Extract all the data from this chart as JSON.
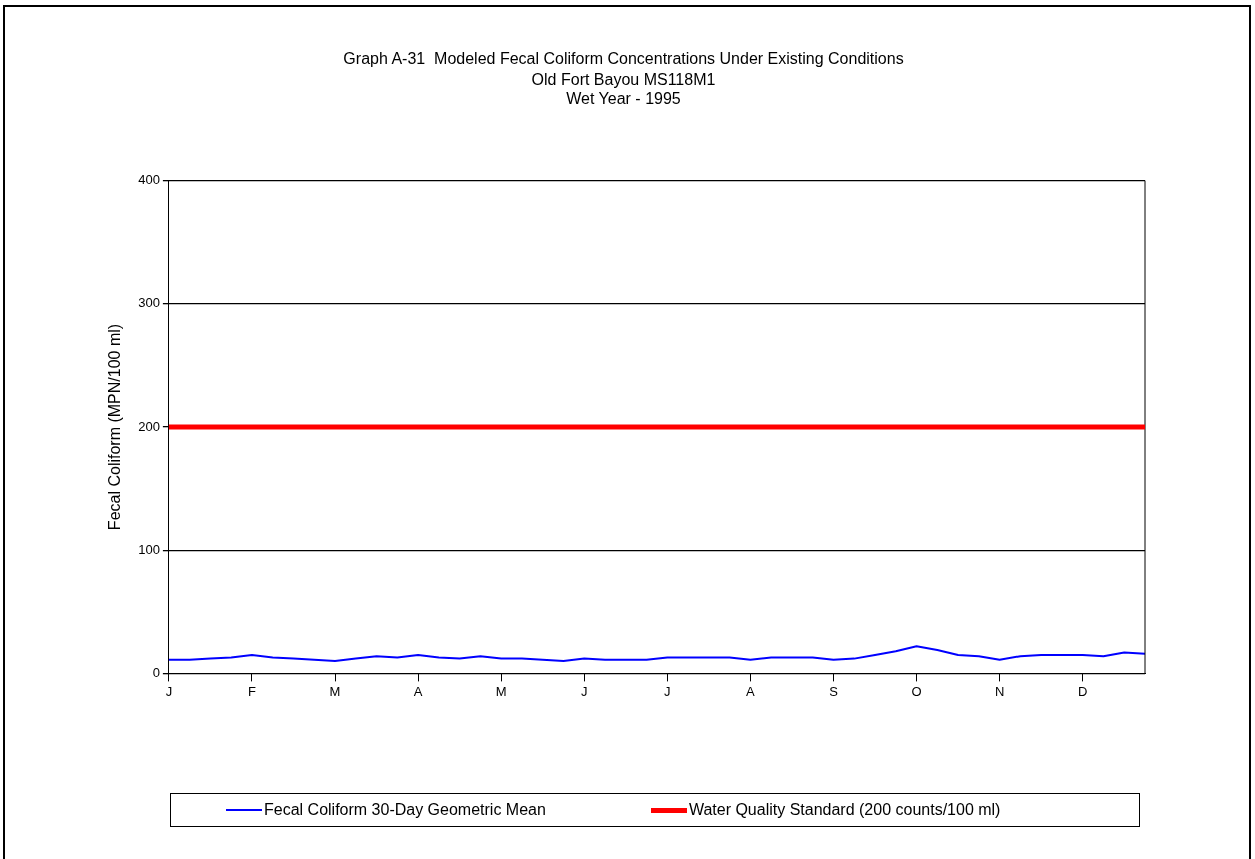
{
  "chart_data": {
    "type": "line",
    "title": "Graph A-31  Modeled Fecal Coliform Concentrations Under Existing Conditions",
    "subtitle": "Old Fort Bayou MS118M1\nWet Year - 1995",
    "ylabel": "Fecal Coliform (MPN/100 ml)",
    "categories": [
      "J",
      null,
      null,
      null,
      "F",
      null,
      null,
      null,
      "M",
      null,
      null,
      null,
      "A",
      null,
      null,
      null,
      "M",
      null,
      null,
      null,
      "J",
      null,
      null,
      null,
      "J",
      null,
      null,
      null,
      "A",
      null,
      null,
      null,
      "S",
      null,
      null,
      null,
      "O",
      null,
      null,
      null,
      "N",
      null,
      null,
      null,
      "D",
      null,
      null,
      null
    ],
    "ylim": [
      0,
      400
    ],
    "yticks": [
      0,
      100,
      200,
      300,
      400
    ],
    "grid": "y",
    "legend": "bottom",
    "marker": "none",
    "line_style": "solid",
    "series": [
      {
        "name": "Fecal Coliform 30-Day Geometric Mean",
        "color": "#0000ff",
        "values": [
          11,
          11,
          12,
          13,
          15,
          13,
          12,
          11,
          10,
          12,
          14,
          13,
          15,
          13,
          12,
          14,
          12,
          12,
          11,
          10,
          12,
          11,
          11,
          11,
          13,
          13,
          13,
          13,
          11,
          13,
          13,
          13,
          11,
          12,
          15,
          18,
          22,
          19,
          15,
          14,
          11,
          14,
          15,
          15,
          15,
          14,
          17,
          16
        ]
      }
    ],
    "ref_lines": [
      {
        "axis": "y",
        "value": 200,
        "label": "Water Quality Standard (200 counts/100 ml)",
        "color": "#ff0000",
        "line_style": "solid"
      }
    ]
  }
}
